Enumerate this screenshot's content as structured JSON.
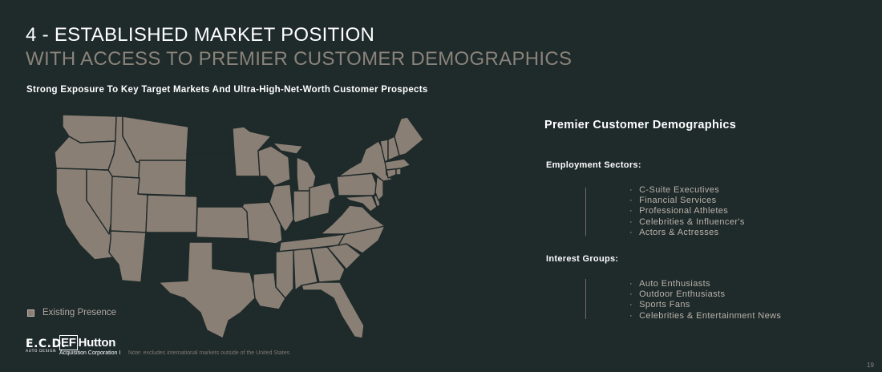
{
  "header": {
    "title_line1": "4 - ESTABLISHED MARKET POSITION",
    "title_line2": "WITH ACCESS TO PREMIER CUSTOMER DEMOGRAPHICS",
    "subtitle": "Strong Exposure To Key Target Markets And Ultra-High-Net-Worth Customer Prospects"
  },
  "map": {
    "legend_label": "Existing Presence",
    "presence_color": "#8a7f75",
    "no_presence_states": [
      "North Dakota",
      "South Dakota",
      "Nebraska",
      "New Mexico",
      "Oklahoma",
      "Arkansas",
      "Kentucky",
      "West Virginia",
      "Iowa"
    ]
  },
  "demographics": {
    "heading": "Premier Customer Demographics",
    "employment_label": "Employment Sectors:",
    "employment_items": [
      "C-Suite Executives",
      "Financial Services",
      "Professional Athletes",
      "Celebrities & Influencer's",
      "Actors & Actresses"
    ],
    "interest_label": "Interest Groups:",
    "interest_items": [
      "Auto Enthusiasts",
      "Outdoor Enthusiasts",
      "Sports Fans",
      "Celebrities & Entertainment News"
    ]
  },
  "footer": {
    "logo_ecd": "E.C.D.",
    "logo_ecd_sub": "AUTO DESIGN",
    "logo_ef": "EF",
    "logo_hutton": "Hutton",
    "logo_hutton_sub": "Acquisition Corporation I",
    "note": "Note: excludes international markets outside of the United States",
    "page_number": "19"
  }
}
